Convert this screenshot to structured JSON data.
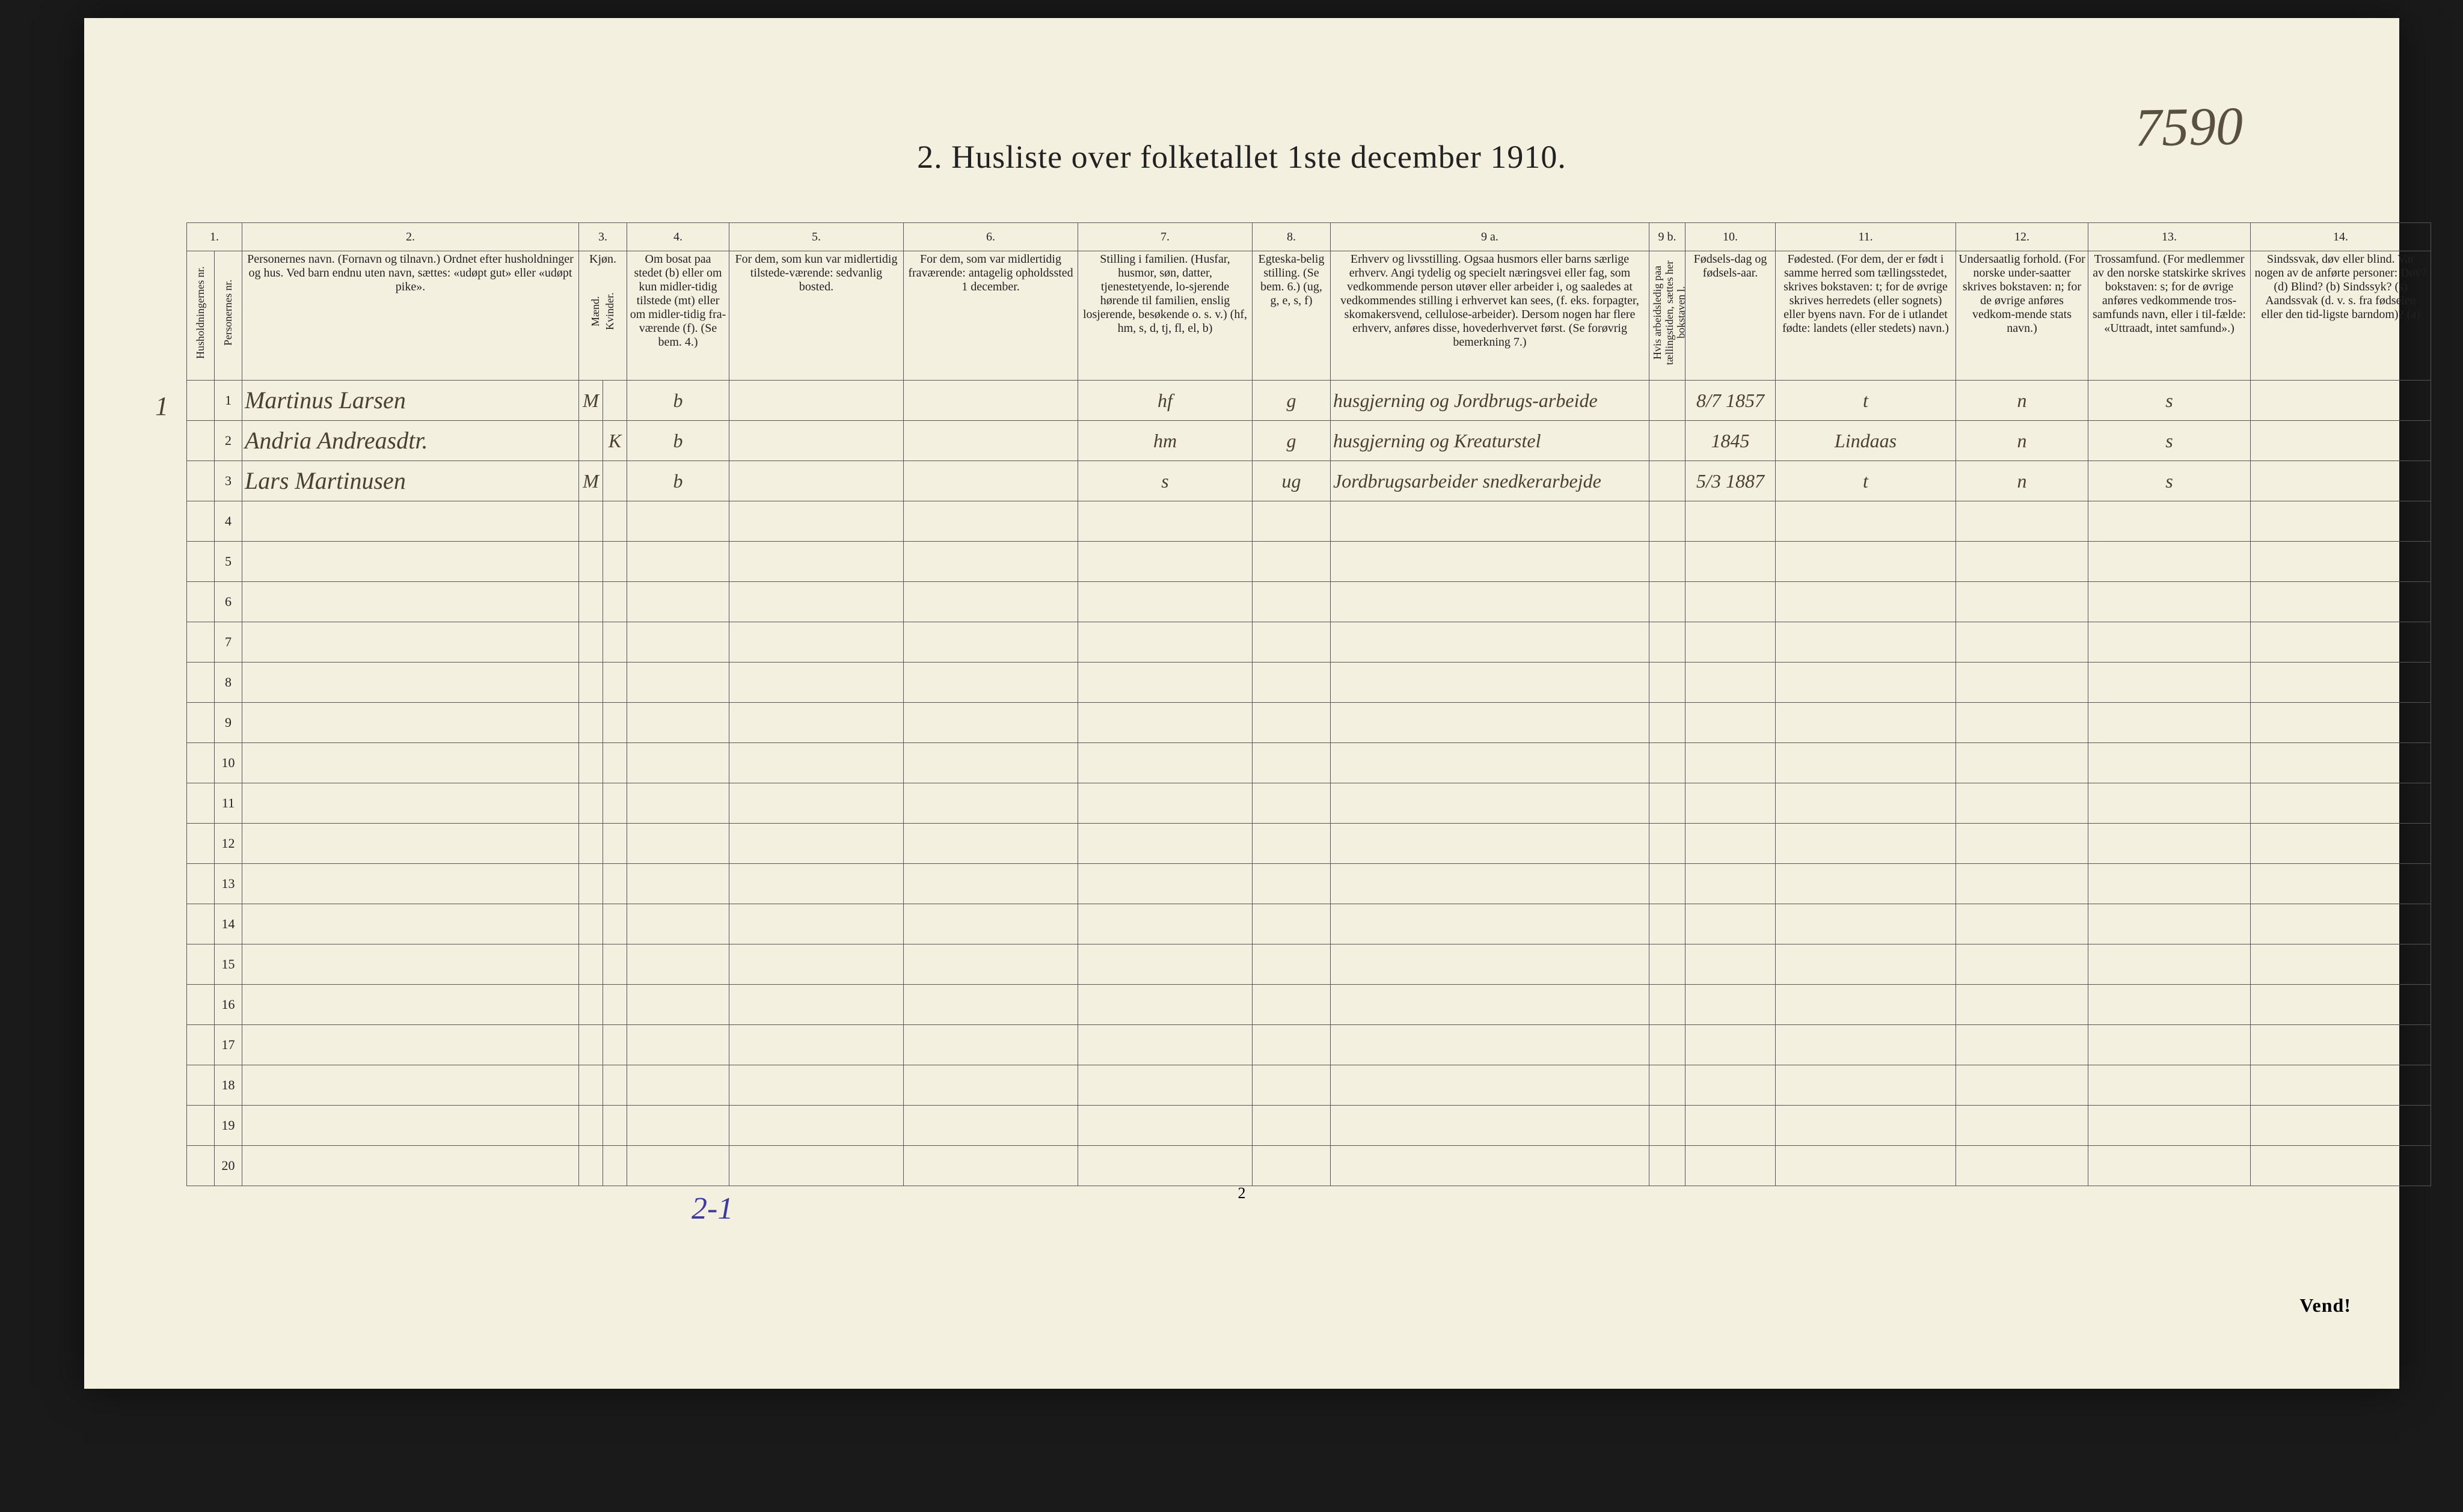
{
  "title": "2.  Husliste over folketallet 1ste december 1910.",
  "top_handwriting": "7590",
  "left_margin": "1",
  "columns_numbers": [
    "1.",
    "2.",
    "3.",
    "4.",
    "5.",
    "6.",
    "7.",
    "8.",
    "9 a.",
    "9 b.",
    "10.",
    "11.",
    "12.",
    "13.",
    "14."
  ],
  "headers": {
    "hushold_nr": "Husholdningernes nr.",
    "person_nr": "Personernes nr.",
    "navn": "Personernes navn.\n(Fornavn og tilnavn.)\nOrdnet efter husholdninger og hus.\nVed barn endnu uten navn, sættes: «udøpt gut» eller «udøpt pike».",
    "kjon": "Kjøn.",
    "kjon_m": "Mænd.",
    "kjon_k": "Kvinder.",
    "bosat": "Om bosat paa stedet (b) eller om kun midler-tidig tilstede (mt) eller om midler-tidig fra-værende (f). (Se bem. 4.)",
    "midl_tilstede": "For dem, som kun var midlertidig tilstede-værende:\nsedvanlig bosted.",
    "midl_fra": "For dem, som var midlertidig fraværende:\nantagelig opholdssted 1 december.",
    "stilling": "Stilling i familien.\n(Husfar, husmor, søn, datter, tjenestetyende, lo-sjerende hørende til familien, enslig losjerende, besøkende o. s. v.)\n(hf, hm, s, d, tj, fl, el, b)",
    "egte": "Egteska-belig stilling.\n(Se bem. 6.)\n(ug, g, e, s, f)",
    "erhverv": "Erhverv og livsstilling.\nOgsaa husmors eller barns særlige erhverv.\nAngi tydelig og specielt næringsvei eller fag, som vedkommende person utøver eller arbeider i, og saaledes at vedkommendes stilling i erhvervet kan sees, (f. eks. forpagter, skomakersvend, cellulose-arbeider). Dersom nogen har flere erhverv, anføres disse, hovederhvervet først.\n(Se forøvrig bemerkning 7.)",
    "arbeidsledig": "Hvis arbeidsledig paa tællingstiden, sættes her bokstaven l.",
    "fodsel": "Fødsels-dag og fødsels-aar.",
    "fodested": "Fødested.\n(For dem, der er født i samme herred som tællingsstedet, skrives bokstaven: t; for de øvrige skrives herredets (eller sognets) eller byens navn. For de i utlandet fødte: landets (eller stedets) navn.)",
    "undersaat": "Undersaatlig forhold.\n(For norske under-saatter skrives bokstaven: n; for de øvrige anføres vedkom-mende stats navn.)",
    "tros": "Trossamfund.\n(For medlemmer av den norske statskirke skrives bokstaven: s; for de øvrige anføres vedkommende tros-samfunds navn, eller i til-fælde: «Uttraadt, intet samfund».)",
    "sinds": "Sindssvak, døv eller blind.\nVar nogen av de anførte personer:\nDøv?        (d)\nBlind?      (b)\nSindssyk?   (s)\nAandssvak (d. v. s. fra fødselen eller den tid-ligste barndom)?  (a)"
  },
  "rows": [
    {
      "pnr": "1",
      "navn": "Martinus Larsen",
      "mk": "M",
      "bosat": "b",
      "stilling": "hf",
      "egte": "g",
      "erhverv": "husgjerning og Jordbrugs-arbeide",
      "fodsel": "8/7 1857",
      "fodested": "t",
      "undersaat": "n",
      "tros": "s"
    },
    {
      "pnr": "2",
      "navn": "Andria Andreasdtr.",
      "mk": "K",
      "bosat": "b",
      "stilling": "hm",
      "egte": "g",
      "erhverv": "husgjerning og Kreaturstel",
      "fodsel": "1845",
      "fodested": "Lindaas",
      "undersaat": "n",
      "tros": "s"
    },
    {
      "pnr": "3",
      "navn": "Lars Martinusen",
      "mk": "M",
      "bosat": "b",
      "stilling": "s",
      "egte": "ug",
      "erhverv": "Jordbrugsarbeider snedkerarbejde",
      "fodsel": "5/3 1887",
      "fodested": "t",
      "undersaat": "n",
      "tros": "s"
    }
  ],
  "blank_rows": [
    "4",
    "5",
    "6",
    "7",
    "8",
    "9",
    "10",
    "11",
    "12",
    "13",
    "14",
    "15",
    "16",
    "17",
    "18",
    "19",
    "20"
  ],
  "footer_page": "2",
  "footer_note": "2-1",
  "vend": "Vend!",
  "colwidths": {
    "hushold": 46,
    "person": 46,
    "navn": 560,
    "m": 40,
    "k": 40,
    "bosat": 170,
    "midl_til": 290,
    "midl_fra": 290,
    "stilling": 290,
    "egte": 130,
    "erhverv": 530,
    "arbled": 60,
    "fodsel": 150,
    "fodested": 300,
    "undersaat": 220,
    "tros": 270,
    "sinds": 300
  }
}
